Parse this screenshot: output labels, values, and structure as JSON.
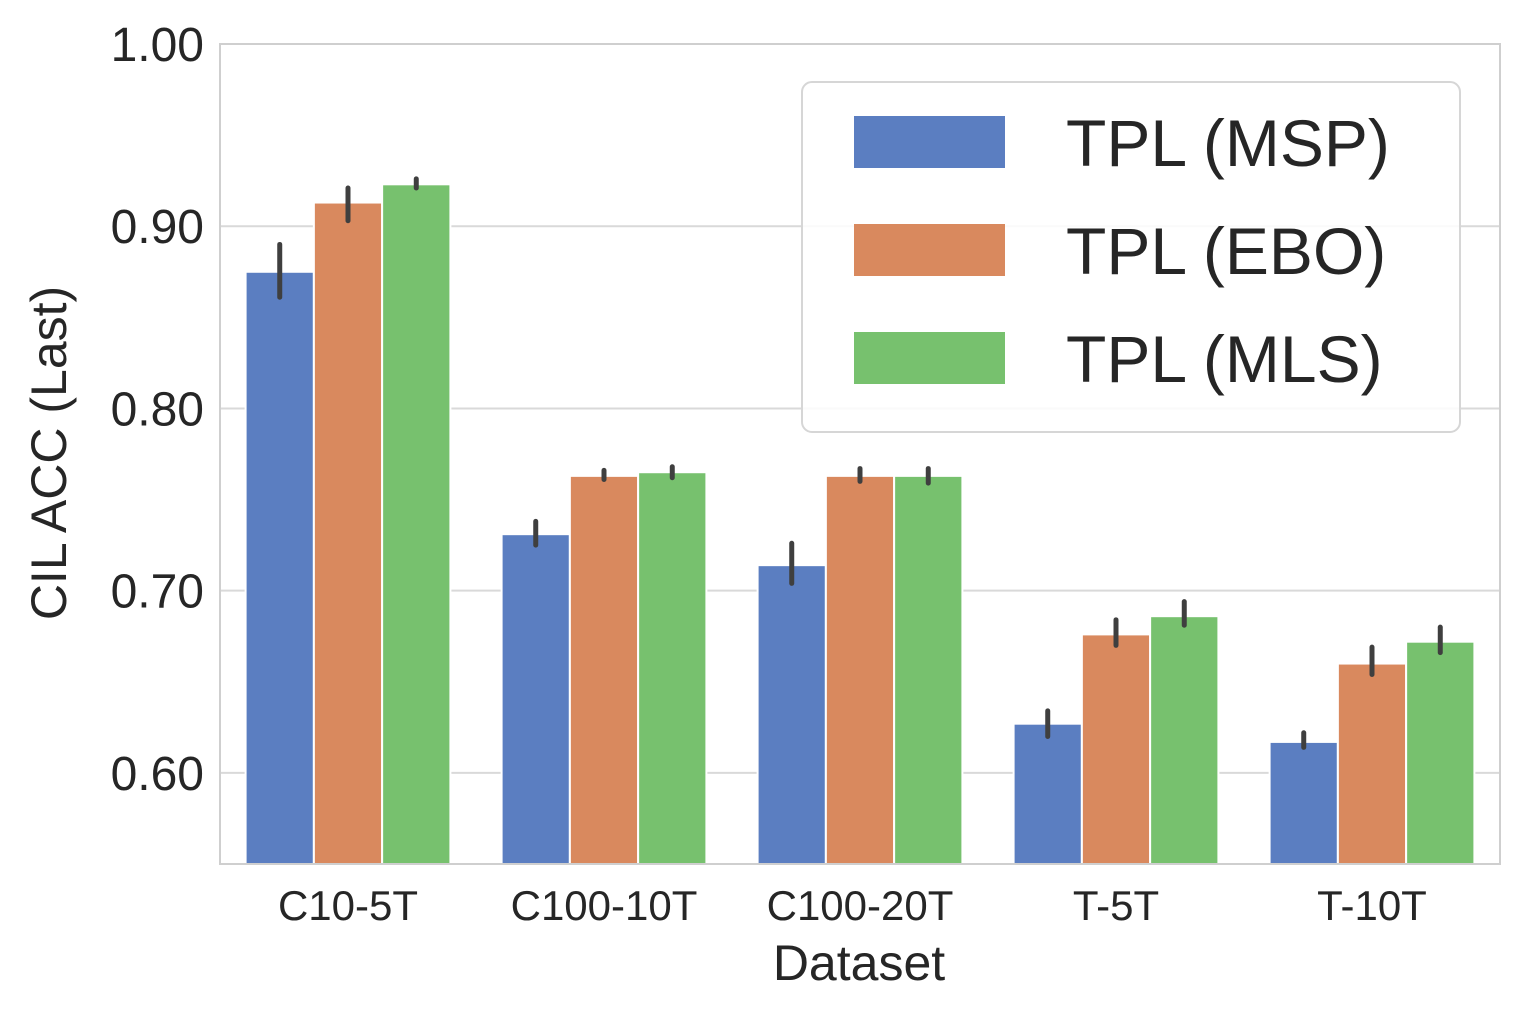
{
  "chart_data": {
    "type": "bar",
    "title": "",
    "xlabel": "Dataset",
    "ylabel": "CIL ACC (Last)",
    "ylim": [
      0.55,
      1.0
    ],
    "yticks": [
      "0.60",
      "0.70",
      "0.80",
      "0.90",
      "1.00"
    ],
    "ytick_values": [
      0.6,
      0.7,
      0.8,
      0.9,
      1.0
    ],
    "grid": "horizontal",
    "legend_position": "top-right",
    "categories": [
      "C10-5T",
      "C100-10T",
      "C100-20T",
      "T-5T",
      "T-10T"
    ],
    "series": [
      {
        "name": "TPL (MSP)",
        "color": "#5b7ec1",
        "values": [
          0.875,
          0.731,
          0.714,
          0.627,
          0.617
        ],
        "error": [
          [
            0.861,
            0.89
          ],
          [
            0.725,
            0.738
          ],
          [
            0.704,
            0.726
          ],
          [
            0.62,
            0.634
          ],
          [
            0.614,
            0.622
          ]
        ]
      },
      {
        "name": "TPL (EBO)",
        "color": "#d9895e",
        "values": [
          0.913,
          0.763,
          0.763,
          0.676,
          0.66
        ],
        "error": [
          [
            0.903,
            0.921
          ],
          [
            0.761,
            0.766
          ],
          [
            0.76,
            0.767
          ],
          [
            0.67,
            0.684
          ],
          [
            0.654,
            0.669
          ]
        ]
      },
      {
        "name": "TPL (MLS)",
        "color": "#77c16e",
        "values": [
          0.923,
          0.765,
          0.763,
          0.686,
          0.672
        ],
        "error": [
          [
            0.921,
            0.926
          ],
          [
            0.762,
            0.768
          ],
          [
            0.759,
            0.767
          ],
          [
            0.681,
            0.694
          ],
          [
            0.666,
            0.68
          ]
        ]
      }
    ]
  }
}
